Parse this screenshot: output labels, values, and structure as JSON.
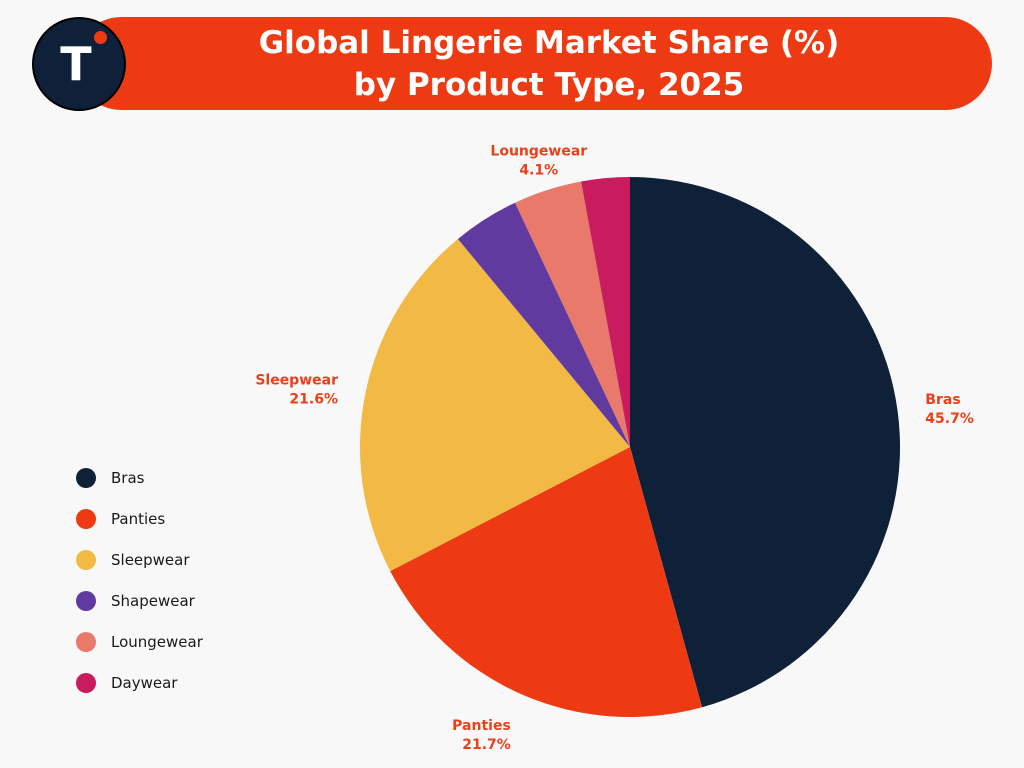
{
  "title": {
    "line1": "Global Lingerie Market Share (%)",
    "line2": "by Product Type, 2025"
  },
  "logo": {
    "letter": "T"
  },
  "colors": {
    "banner": "#ee3a12",
    "logo_bg": "#0f2138",
    "label_text": "#e8401a"
  },
  "chart_data": {
    "type": "pie",
    "title": "Global Lingerie Market Share (%) by Product Type, 2025",
    "unit": "%",
    "legend_position": "left",
    "slices": [
      {
        "label": "Bras",
        "value": 45.7,
        "value_label": "45.7%",
        "color": "#0f2138",
        "show_label": true
      },
      {
        "label": "Panties",
        "value": 21.7,
        "value_label": "21.7%",
        "color": "#ee3a12",
        "show_label": true
      },
      {
        "label": "Sleepwear",
        "value": 21.6,
        "value_label": "21.6%",
        "color": "#f2b944",
        "show_label": true
      },
      {
        "label": "Shapewear",
        "value": 4.0,
        "value_label": "",
        "color": "#603a9e",
        "show_label": false
      },
      {
        "label": "Loungewear",
        "value": 4.1,
        "value_label": "4.1%",
        "color": "#e8796b",
        "show_label": true
      },
      {
        "label": "Daywear",
        "value": 2.9,
        "value_label": "",
        "color": "#c81c5f",
        "show_label": false
      }
    ]
  },
  "legend": {
    "items": [
      {
        "label": "Bras",
        "color": "#0f2138"
      },
      {
        "label": "Panties",
        "color": "#ee3a12"
      },
      {
        "label": "Sleepwear",
        "color": "#f2b944"
      },
      {
        "label": "Shapewear",
        "color": "#603a9e"
      },
      {
        "label": "Loungewear",
        "color": "#e8796b"
      },
      {
        "label": "Daywear",
        "color": "#c81c5f"
      }
    ]
  }
}
